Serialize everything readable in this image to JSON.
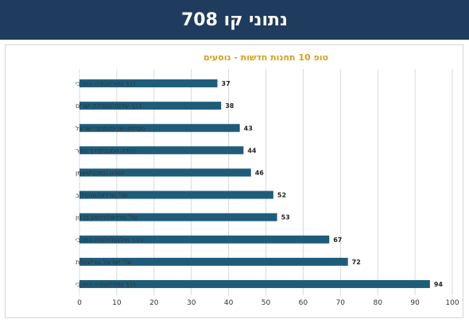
{
  "header": {
    "title": "נתוני קו 708"
  },
  "chart_data": {
    "type": "bar",
    "orientation": "horizontal",
    "title": "טופ 10 תחנות חדשות - נוסעים",
    "categories": [
      "דרך נמיר/יהודה המכבי",
      "דרך שלמה/מסילת ישרים",
      "מסילת ישרים/חכמי ישראל",
      "יהודה המכבי/דרך נמיר",
      "יהודה המכבי/ויצמן",
      "שד' נורדאו/סוקולוב",
      "שד' נורדאו/יהושע בן נון",
      "כיכר מילאנו/יהודה המכבי",
      "שד' ישראל גורי/גיתית",
      "דרך נמיר/יהודה המכבי"
    ],
    "values": [
      37,
      38,
      43,
      44,
      46,
      52,
      53,
      67,
      72,
      94
    ],
    "xlim": [
      0,
      100
    ],
    "xticks": [
      0,
      10,
      20,
      30,
      40,
      50,
      60,
      70,
      80,
      90,
      100
    ],
    "grid": true,
    "legend": "none",
    "bar_color": "#1f5c7a"
  }
}
